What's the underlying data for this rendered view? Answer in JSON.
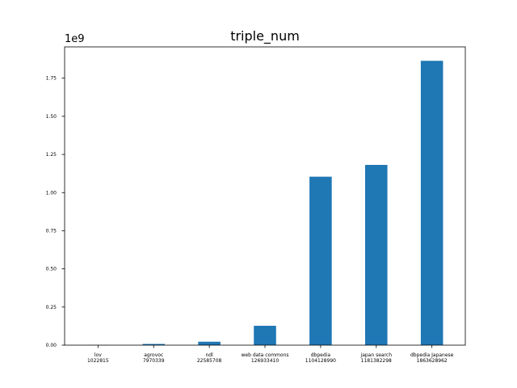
{
  "chart_data": {
    "type": "bar",
    "title": "triple_num",
    "xlabel": "",
    "ylabel": "",
    "y_offset_label": "1e9",
    "ylim": [
      0,
      1.955
    ],
    "yticks": [
      0.0,
      0.25,
      0.5,
      0.75,
      1.0,
      1.25,
      1.5,
      1.75
    ],
    "ytick_labels": [
      "0.00",
      "0.25",
      "0.50",
      "0.75",
      "1.00",
      "1.25",
      "1.50",
      "1.75"
    ],
    "categories": [
      [
        "lov",
        "1022815"
      ],
      [
        "agrovoc",
        "7970339"
      ],
      [
        "ndl",
        "22585708"
      ],
      [
        "web data commons",
        "126933410"
      ],
      [
        "dbpedia",
        "1104128990"
      ],
      [
        "japan search",
        "1181382298"
      ],
      [
        "dbpedia Japanese",
        "1863628962"
      ]
    ],
    "values": [
      1022815,
      7970339,
      22585708,
      126933410,
      1104128990,
      1181382298,
      1863628962
    ],
    "bar_color": "#1f77b4",
    "grid": false,
    "legend": "none"
  }
}
